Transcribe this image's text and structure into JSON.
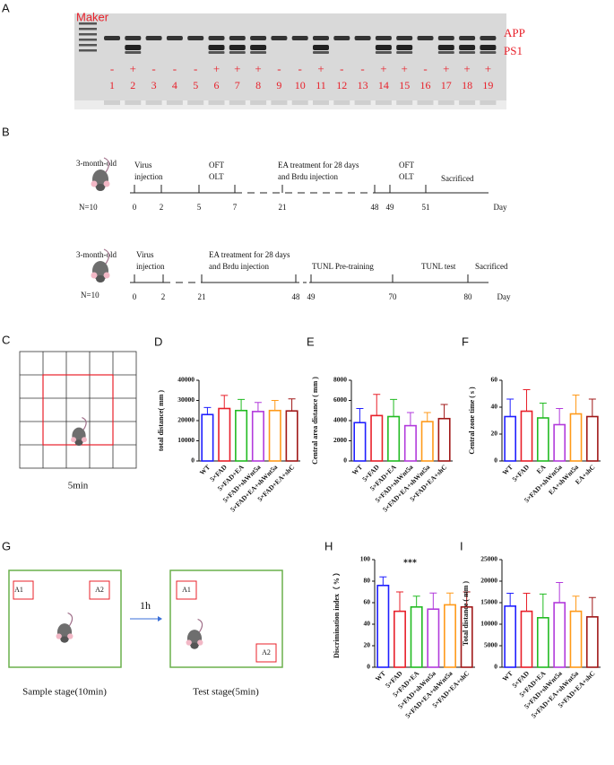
{
  "panel_labels": [
    "A",
    "B",
    "C",
    "D",
    "E",
    "F",
    "G",
    "H",
    "I"
  ],
  "gel": {
    "marker": "Maker",
    "bands": [
      "APP",
      "PS1"
    ],
    "signs": [
      "-",
      "+",
      "-",
      "-",
      "-",
      "+",
      "+",
      "+",
      "-",
      "-",
      "+",
      "-",
      "-",
      "+",
      "+",
      "-",
      "+",
      "+",
      "+"
    ],
    "lanes": [
      "1",
      "2",
      "3",
      "4",
      "5",
      "6",
      "7",
      "8",
      "9",
      "10",
      "11",
      "12",
      "13",
      "14",
      "15",
      "16",
      "17",
      "18",
      "19"
    ]
  },
  "timeline1": {
    "age": "3-month-old",
    "n": "N=10",
    "events": [
      [
        "Virus",
        "injection"
      ],
      [
        "OFT",
        "OLT"
      ],
      [
        "EA treatment for 28 days",
        "and Brdu injection"
      ],
      [
        "OFT",
        "OLT"
      ],
      [
        "Sacrificed"
      ]
    ],
    "days": [
      "0",
      "2",
      "5",
      "7",
      "21",
      "48",
      "49",
      "51",
      "Day"
    ]
  },
  "timeline2": {
    "age": "3-month-old",
    "n": "N=10",
    "events": [
      [
        "Virus",
        "injection"
      ],
      [
        "EA treatment for 28 days",
        "and Brdu injection"
      ],
      [
        "TUNL Pre-training"
      ],
      [
        "TUNL test"
      ],
      [
        "Sacrificed"
      ]
    ],
    "days": [
      "0",
      "2",
      "21",
      "48",
      "49",
      "70",
      "80",
      "Day"
    ]
  },
  "open_field": {
    "caption": "5min"
  },
  "object_test": {
    "sample": {
      "objects": [
        "A1",
        "A2"
      ],
      "caption": "Sample stage(10min)"
    },
    "interval": "1h",
    "test": {
      "objects": [
        "A1",
        "A2"
      ],
      "caption": "Test stage(5min)"
    }
  },
  "chart_data": [
    {
      "type": "bar",
      "ylabel": "total distance( mm )",
      "categories": [
        "WT",
        "5×FAD",
        "5×FAD+EA",
        "5×FAD+shWnt5a",
        "5×FAD+EA+shWnt5a",
        "5×FAD+EA+shC"
      ],
      "values": [
        23000,
        26000,
        25000,
        24500,
        25000,
        24800
      ],
      "errors": [
        3500,
        6500,
        5500,
        4500,
        5000,
        6000
      ],
      "colors": [
        "#1f1fff",
        "#e8202a",
        "#22bb22",
        "#b23bdc",
        "#ff9a1a",
        "#a01818"
      ],
      "ylim": [
        0,
        40000
      ],
      "yticks": [
        0,
        10000,
        20000,
        30000,
        40000
      ]
    },
    {
      "type": "bar",
      "ylabel": "Central area distance ( mm )",
      "categories": [
        "WT",
        "5×FAD",
        "5×FAD+EA",
        "5×FAD+shWnt5a",
        "5×FAD+EA+shWnt5a",
        "5×FAD+EA+shC"
      ],
      "values": [
        3800,
        4500,
        4400,
        3500,
        3900,
        4200
      ],
      "errors": [
        1400,
        2100,
        1700,
        1300,
        900,
        1400
      ],
      "colors": [
        "#1f1fff",
        "#e8202a",
        "#22bb22",
        "#b23bdc",
        "#ff9a1a",
        "#a01818"
      ],
      "ylim": [
        0,
        8000
      ],
      "yticks": [
        0,
        2000,
        4000,
        6000,
        8000
      ]
    },
    {
      "type": "bar",
      "ylabel": "Central zone time ( s )",
      "categories": [
        "WT",
        "5×FAD",
        "EA",
        "5×FAD+shWnt5a",
        "EA+shWnt5a",
        "EA+shC"
      ],
      "values": [
        33,
        37,
        32,
        27,
        35,
        33
      ],
      "errors": [
        13,
        16,
        11,
        12,
        14,
        13
      ],
      "colors": [
        "#1f1fff",
        "#e8202a",
        "#22bb22",
        "#b23bdc",
        "#ff9a1a",
        "#a01818"
      ],
      "ylim": [
        0,
        60
      ],
      "yticks": [
        0,
        20,
        40,
        60
      ]
    },
    {
      "type": "bar",
      "ylabel": "Discrimination index（ % ）",
      "categories": [
        "WT",
        "5×FAD",
        "5×FAD+EA",
        "5×FAD+shWnt5a",
        "5×FAD+EA+shWnt5a",
        "5×FAD+EA+shC"
      ],
      "values": [
        76,
        52,
        56,
        54,
        58,
        56
      ],
      "errors": [
        8,
        18,
        10,
        15,
        11,
        14
      ],
      "colors": [
        "#1f1fff",
        "#e8202a",
        "#22bb22",
        "#b23bdc",
        "#ff9a1a",
        "#a01818"
      ],
      "ylim": [
        0,
        100
      ],
      "yticks": [
        0,
        20,
        40,
        60,
        80,
        100
      ],
      "annotations": [
        {
          "text": "***",
          "category": "5×FAD"
        }
      ]
    },
    {
      "type": "bar",
      "ylabel": "Total distance ( mm )",
      "categories": [
        "WT",
        "5×FAD",
        "5×FAD+EA",
        "5×FAD+shWnt5a",
        "5×FAD+EA+shWnt5a",
        "5×FAD+EA+shC"
      ],
      "values": [
        14200,
        13000,
        11500,
        15000,
        13000,
        11700
      ],
      "errors": [
        3000,
        4200,
        5500,
        4700,
        3500,
        4500
      ],
      "colors": [
        "#1f1fff",
        "#e8202a",
        "#22bb22",
        "#b23bdc",
        "#ff9a1a",
        "#a01818"
      ],
      "ylim": [
        0,
        25000
      ],
      "yticks": [
        0,
        5000,
        10000,
        15000,
        20000,
        25000
      ]
    }
  ]
}
